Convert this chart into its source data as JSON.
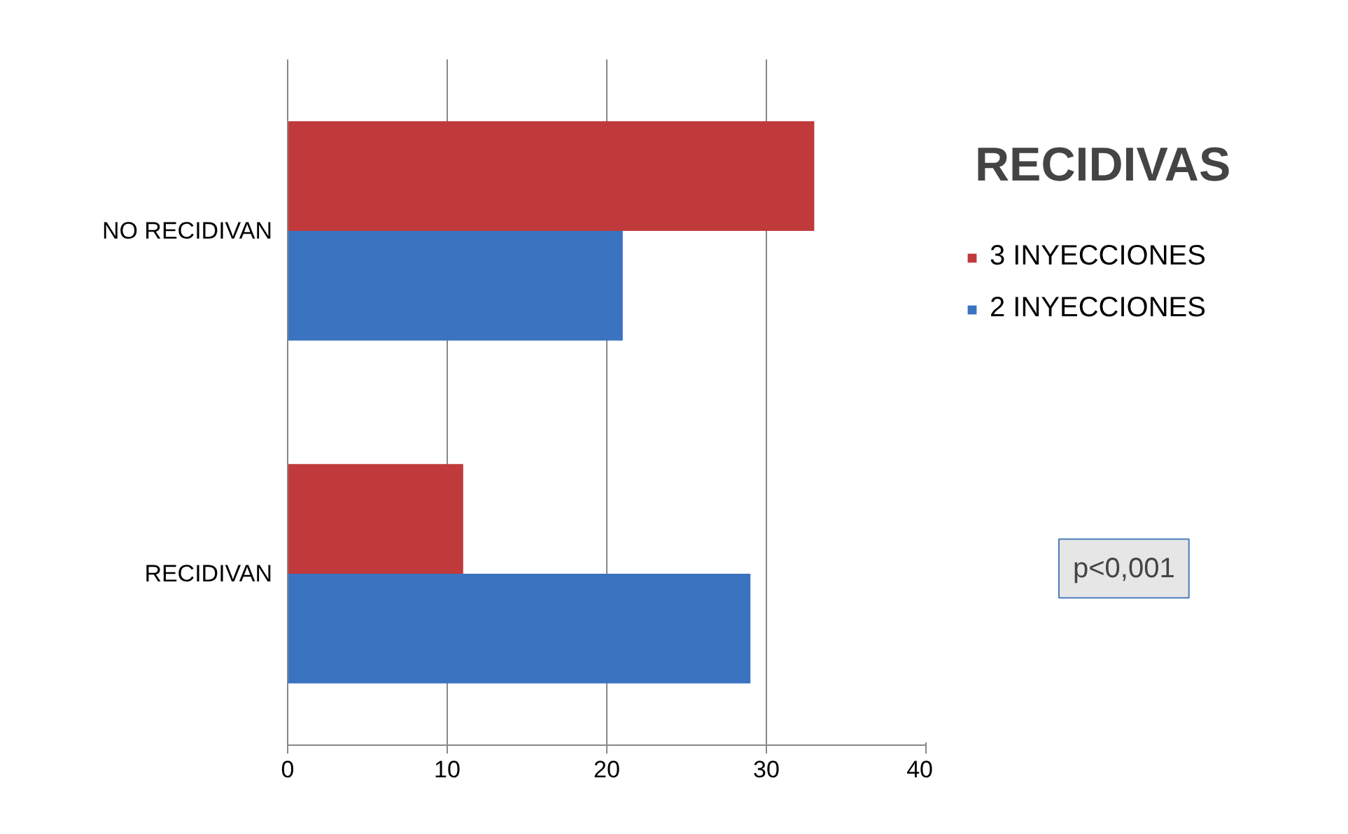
{
  "chart_data": {
    "type": "bar",
    "orientation": "horizontal",
    "title": "RECIDIVAS",
    "categories": [
      "NO RECIDIVAN",
      "RECIDIVAN"
    ],
    "series": [
      {
        "name": "3 INYECCIONES",
        "color": "#c0393b",
        "values": [
          33,
          11
        ]
      },
      {
        "name": "2 INYECCIONES",
        "color": "#3a73c0",
        "values": [
          21,
          29
        ]
      }
    ],
    "xlim": [
      0,
      40
    ],
    "xticks": [
      0,
      10,
      20,
      30,
      40
    ],
    "grid": "x",
    "legend": "right",
    "annotations": [
      "p<0,001"
    ]
  }
}
